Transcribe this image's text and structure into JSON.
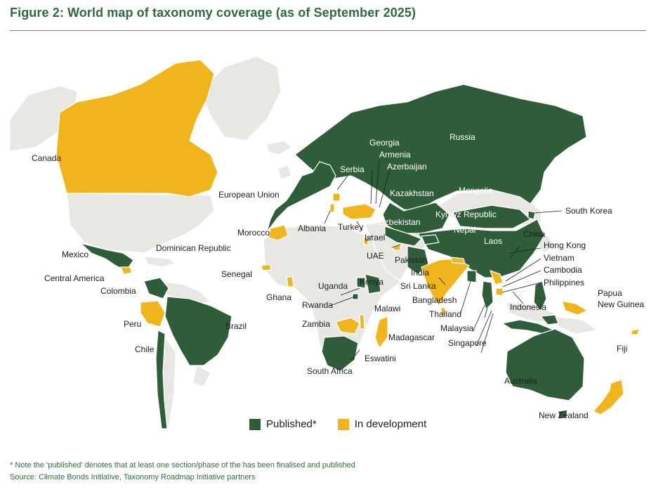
{
  "figure": {
    "title": "Figure 2:  World map of taxonomy coverage (as of September 2025)"
  },
  "colors": {
    "published": "#2f5d3a",
    "in_development": "#f0b51c",
    "other": "#e9e7e3",
    "title": "#2f6b3f",
    "country_border": "#ffffff"
  },
  "legend": {
    "published": "Published*",
    "in_development": "In development"
  },
  "labels": {
    "canada": "Canada",
    "mexico": "Mexico",
    "central_america": "Central America",
    "colombia": "Colombia",
    "peru": "Peru",
    "chile": "Chile",
    "brazil": "Brazil",
    "dominican_republic": "Dominican Republic",
    "european_union": "European Union",
    "morocco": "Morocco",
    "senegal": "Senegal",
    "ghana": "Ghana",
    "albania": "Albania",
    "serbia": "Serbia",
    "turkey": "Turkey",
    "israel": "Israel",
    "uae": "UAE",
    "georgia": "Georgia",
    "armenia": "Armenia",
    "azerbaijan": "Azerbaijan",
    "kazakhstan": "Kazakhstan",
    "uzbekistan": "Uzbekistan",
    "kyrgyz_republic": "Kyrgyz Republic",
    "mongolia": "Mongolia",
    "russia": "Russia",
    "china": "China",
    "south_korea": "South Korea",
    "hong_kong": "Hong Kong",
    "vietnam": "Vietnam",
    "cambodia": "Cambodia",
    "philippines": "Philippines",
    "laos": "Laos",
    "nepal": "Nepal",
    "pakistan": "Pakistan",
    "india": "India",
    "sri_lanka": "Sri Lanka",
    "bangladesh": "Bangladesh",
    "thailand": "Thailand",
    "malaysia": "Malaysia",
    "singapore": "Singapore",
    "indonesia": "Indonesia",
    "papua": "Papua",
    "new_guinea": "New Guinea",
    "fiji": "Fiji",
    "australia": "Australia",
    "new_zealand": "New Zealand",
    "uganda": "Uganda",
    "kenya": "Kenya",
    "rwanda": "Rwanda",
    "malawi": "Malawi",
    "zambia": "Zambia",
    "madagascar": "Madagascar",
    "eswatini": "Eswatini",
    "south_africa": "South Africa"
  },
  "notes": {
    "footnote": "* Note the ‘published’ denotes that at least one section/phase of the has been finalised and published",
    "source": "Source: Climate Bonds Initiative, Taxonomy Roadmap Initiative partners"
  }
}
